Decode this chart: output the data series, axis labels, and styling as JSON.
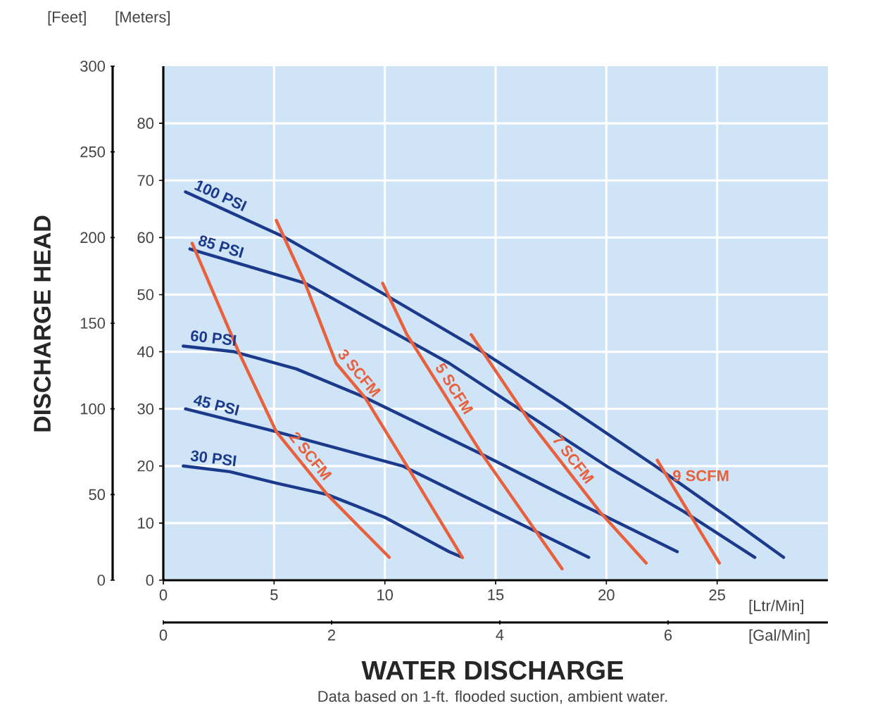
{
  "chart_data": {
    "type": "line",
    "xlabel": "WATER DISCHARGE",
    "ylabel": "DISCHARGE HEAD",
    "xlim": [
      0,
      30
    ],
    "xticks": [
      0,
      5,
      10,
      15,
      20,
      25
    ],
    "y2lim": [
      0,
      90
    ],
    "y2ticks": [
      0,
      10,
      20,
      30,
      40,
      50,
      60,
      70,
      80
    ],
    "ylim": [
      0,
      300
    ],
    "yticks": [
      0,
      50,
      100,
      150,
      200,
      250,
      300
    ],
    "x2lim": [
      0,
      7.9
    ],
    "x2ticks": [
      0,
      2,
      4,
      6
    ],
    "grid": true,
    "line_style": "solid",
    "annotations": [
      "[Feet]",
      "[Meters]",
      "[Ltr/Min]",
      "[Gal/Min]",
      "Data based on 1-ft. flooded suction, ambient water."
    ],
    "series": [
      {
        "name": "100 PSI",
        "color": "#1c3a8c",
        "axis": "y2",
        "x": [
          1,
          5.5,
          10,
          14.4,
          18,
          22.2,
          25.5,
          28
        ],
        "values": [
          68,
          60,
          50,
          40,
          31,
          20,
          11,
          4
        ]
      },
      {
        "name": "85 PSI",
        "color": "#1c3a8c",
        "axis": "y2",
        "x": [
          1.2,
          6.4,
          12.9,
          20,
          23.5,
          26.7
        ],
        "values": [
          58,
          52,
          38,
          20,
          12,
          4
        ]
      },
      {
        "name": "60 PSI",
        "color": "#1c3a8c",
        "axis": "y2",
        "x": [
          0.9,
          3.2,
          6,
          9.1,
          14.4,
          19,
          23.2
        ],
        "values": [
          41,
          40,
          37,
          32,
          22,
          13,
          5
        ]
      },
      {
        "name": "45 PSI",
        "color": "#1c3a8c",
        "axis": "y2",
        "x": [
          1,
          5.1,
          10.8,
          15,
          19.2
        ],
        "values": [
          30,
          26,
          20,
          12,
          4
        ]
      },
      {
        "name": "30 PSI",
        "color": "#1c3a8c",
        "axis": "y2",
        "x": [
          0.9,
          3,
          5.1,
          7.4,
          10,
          12.9,
          13.5
        ],
        "values": [
          20,
          19,
          17,
          15,
          11,
          5,
          4
        ]
      },
      {
        "name": "2 SCFM",
        "color": "#e8603c",
        "axis": "y2",
        "x": [
          1.3,
          3.4,
          5.1,
          7.4,
          10.2
        ],
        "values": [
          59,
          40,
          26,
          15,
          4
        ]
      },
      {
        "name": "3 SCFM",
        "color": "#e8603c",
        "axis": "y2",
        "x": [
          5.1,
          6.4,
          7.8,
          9.1,
          11,
          13.5
        ],
        "values": [
          63,
          52,
          38,
          32,
          20,
          4
        ]
      },
      {
        "name": "5 SCFM",
        "color": "#e8603c",
        "axis": "y2",
        "x": [
          9.9,
          11,
          14.4,
          18
        ],
        "values": [
          52,
          43,
          22,
          2
        ]
      },
      {
        "name": "7 SCFM",
        "color": "#e8603c",
        "axis": "y2",
        "x": [
          13.9,
          16.5,
          19.7,
          21.8
        ],
        "values": [
          43,
          28,
          12,
          3
        ]
      },
      {
        "name": "9 SCFM",
        "color": "#e8603c",
        "axis": "y2",
        "x": [
          22.3,
          25.1
        ],
        "values": [
          21,
          3
        ]
      }
    ]
  }
}
